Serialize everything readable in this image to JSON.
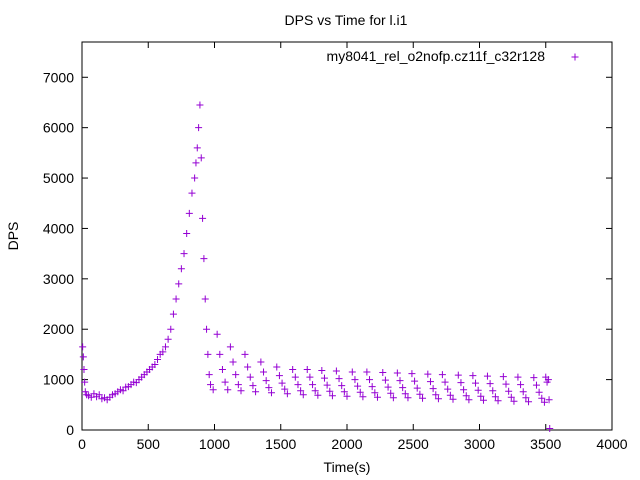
{
  "chart_data": {
    "type": "scatter",
    "title": "DPS vs Time for l.i1",
    "xlabel": "Time(s)",
    "ylabel": "DPS",
    "xlim": [
      0,
      4000
    ],
    "ylim": [
      0,
      7700
    ],
    "xticks": [
      0,
      500,
      1000,
      1500,
      2000,
      2500,
      3000,
      3500,
      4000
    ],
    "yticks": [
      0,
      1000,
      2000,
      3000,
      4000,
      5000,
      6000,
      7000
    ],
    "grid": false,
    "legend_position": "top-right",
    "marker": "plus",
    "color": "#9400d3",
    "series": [
      {
        "name": "my8041_rel_o2nofp.cz11f_c32r128",
        "points": [
          [
            5,
            1650
          ],
          [
            10,
            1450
          ],
          [
            15,
            1200
          ],
          [
            20,
            950
          ],
          [
            25,
            760
          ],
          [
            35,
            700
          ],
          [
            50,
            680
          ],
          [
            70,
            650
          ],
          [
            90,
            720
          ],
          [
            110,
            660
          ],
          [
            130,
            700
          ],
          [
            150,
            620
          ],
          [
            170,
            640
          ],
          [
            190,
            600
          ],
          [
            210,
            650
          ],
          [
            230,
            700
          ],
          [
            250,
            720
          ],
          [
            270,
            760
          ],
          [
            290,
            800
          ],
          [
            310,
            780
          ],
          [
            330,
            850
          ],
          [
            350,
            860
          ],
          [
            370,
            900
          ],
          [
            390,
            950
          ],
          [
            410,
            940
          ],
          [
            430,
            1000
          ],
          [
            450,
            1050
          ],
          [
            470,
            1100
          ],
          [
            490,
            1150
          ],
          [
            510,
            1200
          ],
          [
            530,
            1250
          ],
          [
            550,
            1300
          ],
          [
            570,
            1400
          ],
          [
            590,
            1500
          ],
          [
            610,
            1550
          ],
          [
            630,
            1650
          ],
          [
            650,
            1800
          ],
          [
            670,
            2000
          ],
          [
            690,
            2300
          ],
          [
            710,
            2600
          ],
          [
            730,
            2900
          ],
          [
            750,
            3200
          ],
          [
            770,
            3500
          ],
          [
            790,
            3900
          ],
          [
            810,
            4300
          ],
          [
            830,
            4700
          ],
          [
            850,
            5000
          ],
          [
            860,
            5300
          ],
          [
            870,
            5600
          ],
          [
            880,
            6000
          ],
          [
            890,
            6450
          ],
          [
            900,
            5400
          ],
          [
            910,
            4200
          ],
          [
            920,
            3400
          ],
          [
            930,
            2600
          ],
          [
            940,
            2000
          ],
          [
            950,
            1500
          ],
          [
            960,
            1100
          ],
          [
            970,
            900
          ],
          [
            990,
            800
          ],
          [
            1020,
            1900
          ],
          [
            1040,
            1500
          ],
          [
            1060,
            1200
          ],
          [
            1080,
            950
          ],
          [
            1100,
            800
          ],
          [
            1120,
            1650
          ],
          [
            1140,
            1350
          ],
          [
            1160,
            1100
          ],
          [
            1180,
            900
          ],
          [
            1200,
            780
          ],
          [
            1230,
            1500
          ],
          [
            1250,
            1250
          ],
          [
            1270,
            1050
          ],
          [
            1290,
            880
          ],
          [
            1310,
            760
          ],
          [
            1350,
            1350
          ],
          [
            1370,
            1150
          ],
          [
            1390,
            980
          ],
          [
            1410,
            840
          ],
          [
            1430,
            740
          ],
          [
            1470,
            1250
          ],
          [
            1490,
            1080
          ],
          [
            1510,
            930
          ],
          [
            1530,
            810
          ],
          [
            1550,
            720
          ],
          [
            1590,
            1200
          ],
          [
            1610,
            1050
          ],
          [
            1630,
            900
          ],
          [
            1650,
            780
          ],
          [
            1670,
            700
          ],
          [
            1700,
            1200
          ],
          [
            1720,
            1050
          ],
          [
            1740,
            900
          ],
          [
            1760,
            780
          ],
          [
            1780,
            690
          ],
          [
            1810,
            1180
          ],
          [
            1830,
            1030
          ],
          [
            1850,
            890
          ],
          [
            1870,
            770
          ],
          [
            1890,
            680
          ],
          [
            1920,
            1170
          ],
          [
            1940,
            1020
          ],
          [
            1960,
            880
          ],
          [
            1980,
            760
          ],
          [
            2000,
            670
          ],
          [
            2040,
            1150
          ],
          [
            2060,
            1000
          ],
          [
            2080,
            870
          ],
          [
            2100,
            750
          ],
          [
            2120,
            660
          ],
          [
            2150,
            1150
          ],
          [
            2170,
            1000
          ],
          [
            2190,
            860
          ],
          [
            2210,
            740
          ],
          [
            2230,
            650
          ],
          [
            2270,
            1140
          ],
          [
            2290,
            990
          ],
          [
            2310,
            850
          ],
          [
            2330,
            730
          ],
          [
            2350,
            640
          ],
          [
            2380,
            1130
          ],
          [
            2400,
            980
          ],
          [
            2420,
            840
          ],
          [
            2440,
            720
          ],
          [
            2460,
            640
          ],
          [
            2490,
            1120
          ],
          [
            2510,
            970
          ],
          [
            2530,
            830
          ],
          [
            2550,
            710
          ],
          [
            2570,
            630
          ],
          [
            2610,
            1110
          ],
          [
            2630,
            960
          ],
          [
            2650,
            820
          ],
          [
            2670,
            700
          ],
          [
            2690,
            620
          ],
          [
            2720,
            1100
          ],
          [
            2740,
            950
          ],
          [
            2760,
            810
          ],
          [
            2780,
            690
          ],
          [
            2800,
            610
          ],
          [
            2840,
            1090
          ],
          [
            2860,
            940
          ],
          [
            2880,
            800
          ],
          [
            2900,
            680
          ],
          [
            2920,
            600
          ],
          [
            2950,
            1080
          ],
          [
            2970,
            930
          ],
          [
            2990,
            790
          ],
          [
            3010,
            670
          ],
          [
            3030,
            590
          ],
          [
            3060,
            1070
          ],
          [
            3080,
            920
          ],
          [
            3100,
            780
          ],
          [
            3120,
            660
          ],
          [
            3140,
            580
          ],
          [
            3180,
            1060
          ],
          [
            3200,
            910
          ],
          [
            3220,
            770
          ],
          [
            3240,
            650
          ],
          [
            3260,
            570
          ],
          [
            3290,
            1050
          ],
          [
            3310,
            900
          ],
          [
            3330,
            760
          ],
          [
            3350,
            640
          ],
          [
            3370,
            560
          ],
          [
            3410,
            1040
          ],
          [
            3430,
            890
          ],
          [
            3450,
            750
          ],
          [
            3470,
            630
          ],
          [
            3490,
            550
          ],
          [
            3500,
            1050
          ],
          [
            3510,
            950
          ],
          [
            3520,
            1000
          ],
          [
            3525,
            600
          ],
          [
            3530,
            30
          ]
        ]
      }
    ]
  }
}
